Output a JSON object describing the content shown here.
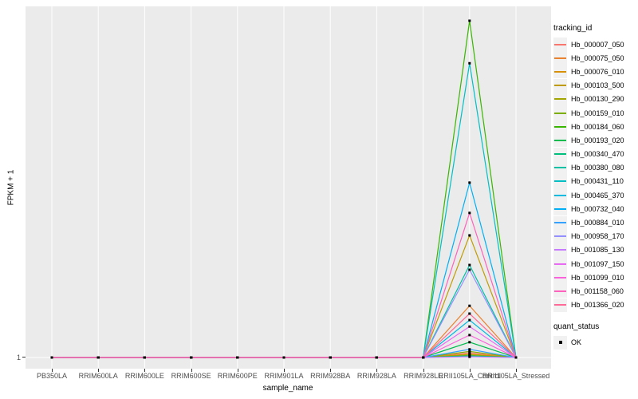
{
  "chart_data": {
    "type": "line",
    "xlabel": "sample_name",
    "ylabel": "FPKM + 1",
    "y_tick_label": "1",
    "ylim_note": "single labeled break at 1; peak heights estimated in relative units (baseline 1, tallest peak 100)",
    "grid": "vertical white gridlines per category plus baseline gridline",
    "legend_position": "right",
    "panel_bg": "#EBEBEB",
    "grid_color": "#FFFFFF",
    "point_color": "#000000",
    "categories": [
      "PB350LA",
      "RRIM600LA",
      "RRIM600LE",
      "RRIM600SE",
      "RRIM600PE",
      "RRIM901LA",
      "RRIM928BA",
      "RRIM928LA",
      "RRIM928LE",
      "RRII105LA_Control",
      "RRII105LA_Stressed"
    ],
    "series": [
      {
        "name": "Hb_000007_050",
        "color": "#F8766D",
        "values": [
          1,
          1,
          1,
          1,
          1,
          1,
          1,
          1,
          1,
          2.4,
          1
        ]
      },
      {
        "name": "Hb_000075_050",
        "color": "#EA8331",
        "values": [
          1,
          1,
          1,
          1,
          1,
          1,
          1,
          1,
          1,
          16.2,
          1
        ]
      },
      {
        "name": "Hb_000076_010",
        "color": "#D89000",
        "values": [
          1,
          1,
          1,
          1,
          1,
          1,
          1,
          1,
          1,
          2.0,
          1
        ]
      },
      {
        "name": "Hb_000103_500",
        "color": "#C09B00",
        "values": [
          1,
          1,
          1,
          1,
          1,
          1,
          1,
          1,
          1,
          36.9,
          1
        ]
      },
      {
        "name": "Hb_000130_290",
        "color": "#A3A500",
        "values": [
          1,
          1,
          1,
          1,
          1,
          1,
          1,
          1,
          1,
          1.8,
          1
        ]
      },
      {
        "name": "Hb_000159_010",
        "color": "#7CAE00",
        "values": [
          1,
          1,
          1,
          1,
          1,
          1,
          1,
          1,
          1,
          2.8,
          1
        ]
      },
      {
        "name": "Hb_000184_060",
        "color": "#39B600",
        "values": [
          1,
          1,
          1,
          1,
          1,
          1,
          1,
          1,
          1,
          100,
          1
        ]
      },
      {
        "name": "Hb_000193_020",
        "color": "#00BB4E",
        "values": [
          1,
          1,
          1,
          1,
          1,
          1,
          1,
          1,
          1,
          5.5,
          1
        ]
      },
      {
        "name": "Hb_000340_470",
        "color": "#00BF7D",
        "values": [
          1,
          1,
          1,
          1,
          1,
          1,
          1,
          1,
          1,
          1.5,
          1
        ]
      },
      {
        "name": "Hb_000380_080",
        "color": "#00C1A3",
        "values": [
          1,
          1,
          1,
          1,
          1,
          1,
          1,
          1,
          1,
          28.2,
          1
        ]
      },
      {
        "name": "Hb_000431_110",
        "color": "#00BFC4",
        "values": [
          1,
          1,
          1,
          1,
          1,
          1,
          1,
          1,
          1,
          87.5,
          1
        ]
      },
      {
        "name": "Hb_000465_370",
        "color": "#00BAE0",
        "values": [
          1,
          1,
          1,
          1,
          1,
          1,
          1,
          1,
          1,
          12.0,
          1
        ]
      },
      {
        "name": "Hb_000732_040",
        "color": "#00B0F6",
        "values": [
          1,
          1,
          1,
          1,
          1,
          1,
          1,
          1,
          1,
          52.4,
          1
        ]
      },
      {
        "name": "Hb_000884_010",
        "color": "#35A2FF",
        "values": [
          1,
          1,
          1,
          1,
          1,
          1,
          1,
          1,
          1,
          3.4,
          1
        ]
      },
      {
        "name": "Hb_000958_170",
        "color": "#9590FF",
        "values": [
          1,
          1,
          1,
          1,
          1,
          1,
          1,
          1,
          1,
          26.8,
          1
        ]
      },
      {
        "name": "Hb_001085_130",
        "color": "#C77CFF",
        "values": [
          1,
          1,
          1,
          1,
          1,
          1,
          1,
          1,
          1,
          1.2,
          1
        ]
      },
      {
        "name": "Hb_001097_150",
        "color": "#E76BF3",
        "values": [
          1,
          1,
          1,
          1,
          1,
          1,
          1,
          1,
          1,
          10.1,
          1
        ]
      },
      {
        "name": "Hb_001099_010",
        "color": "#FA62DB",
        "values": [
          1,
          1,
          1,
          1,
          1,
          1,
          1,
          1,
          1,
          7.6,
          1
        ]
      },
      {
        "name": "Hb_001158_060",
        "color": "#FF62BC",
        "values": [
          1,
          1,
          1,
          1,
          1,
          1,
          1,
          1,
          1,
          43.5,
          1
        ]
      },
      {
        "name": "Hb_001366_020",
        "color": "#FF6A98",
        "values": [
          1,
          1,
          1,
          1,
          1,
          1,
          1,
          1,
          1,
          13.9,
          1
        ]
      }
    ]
  },
  "legend": {
    "tracking_title": "tracking_id",
    "quant_title": "quant_status",
    "quant_label": "OK"
  }
}
